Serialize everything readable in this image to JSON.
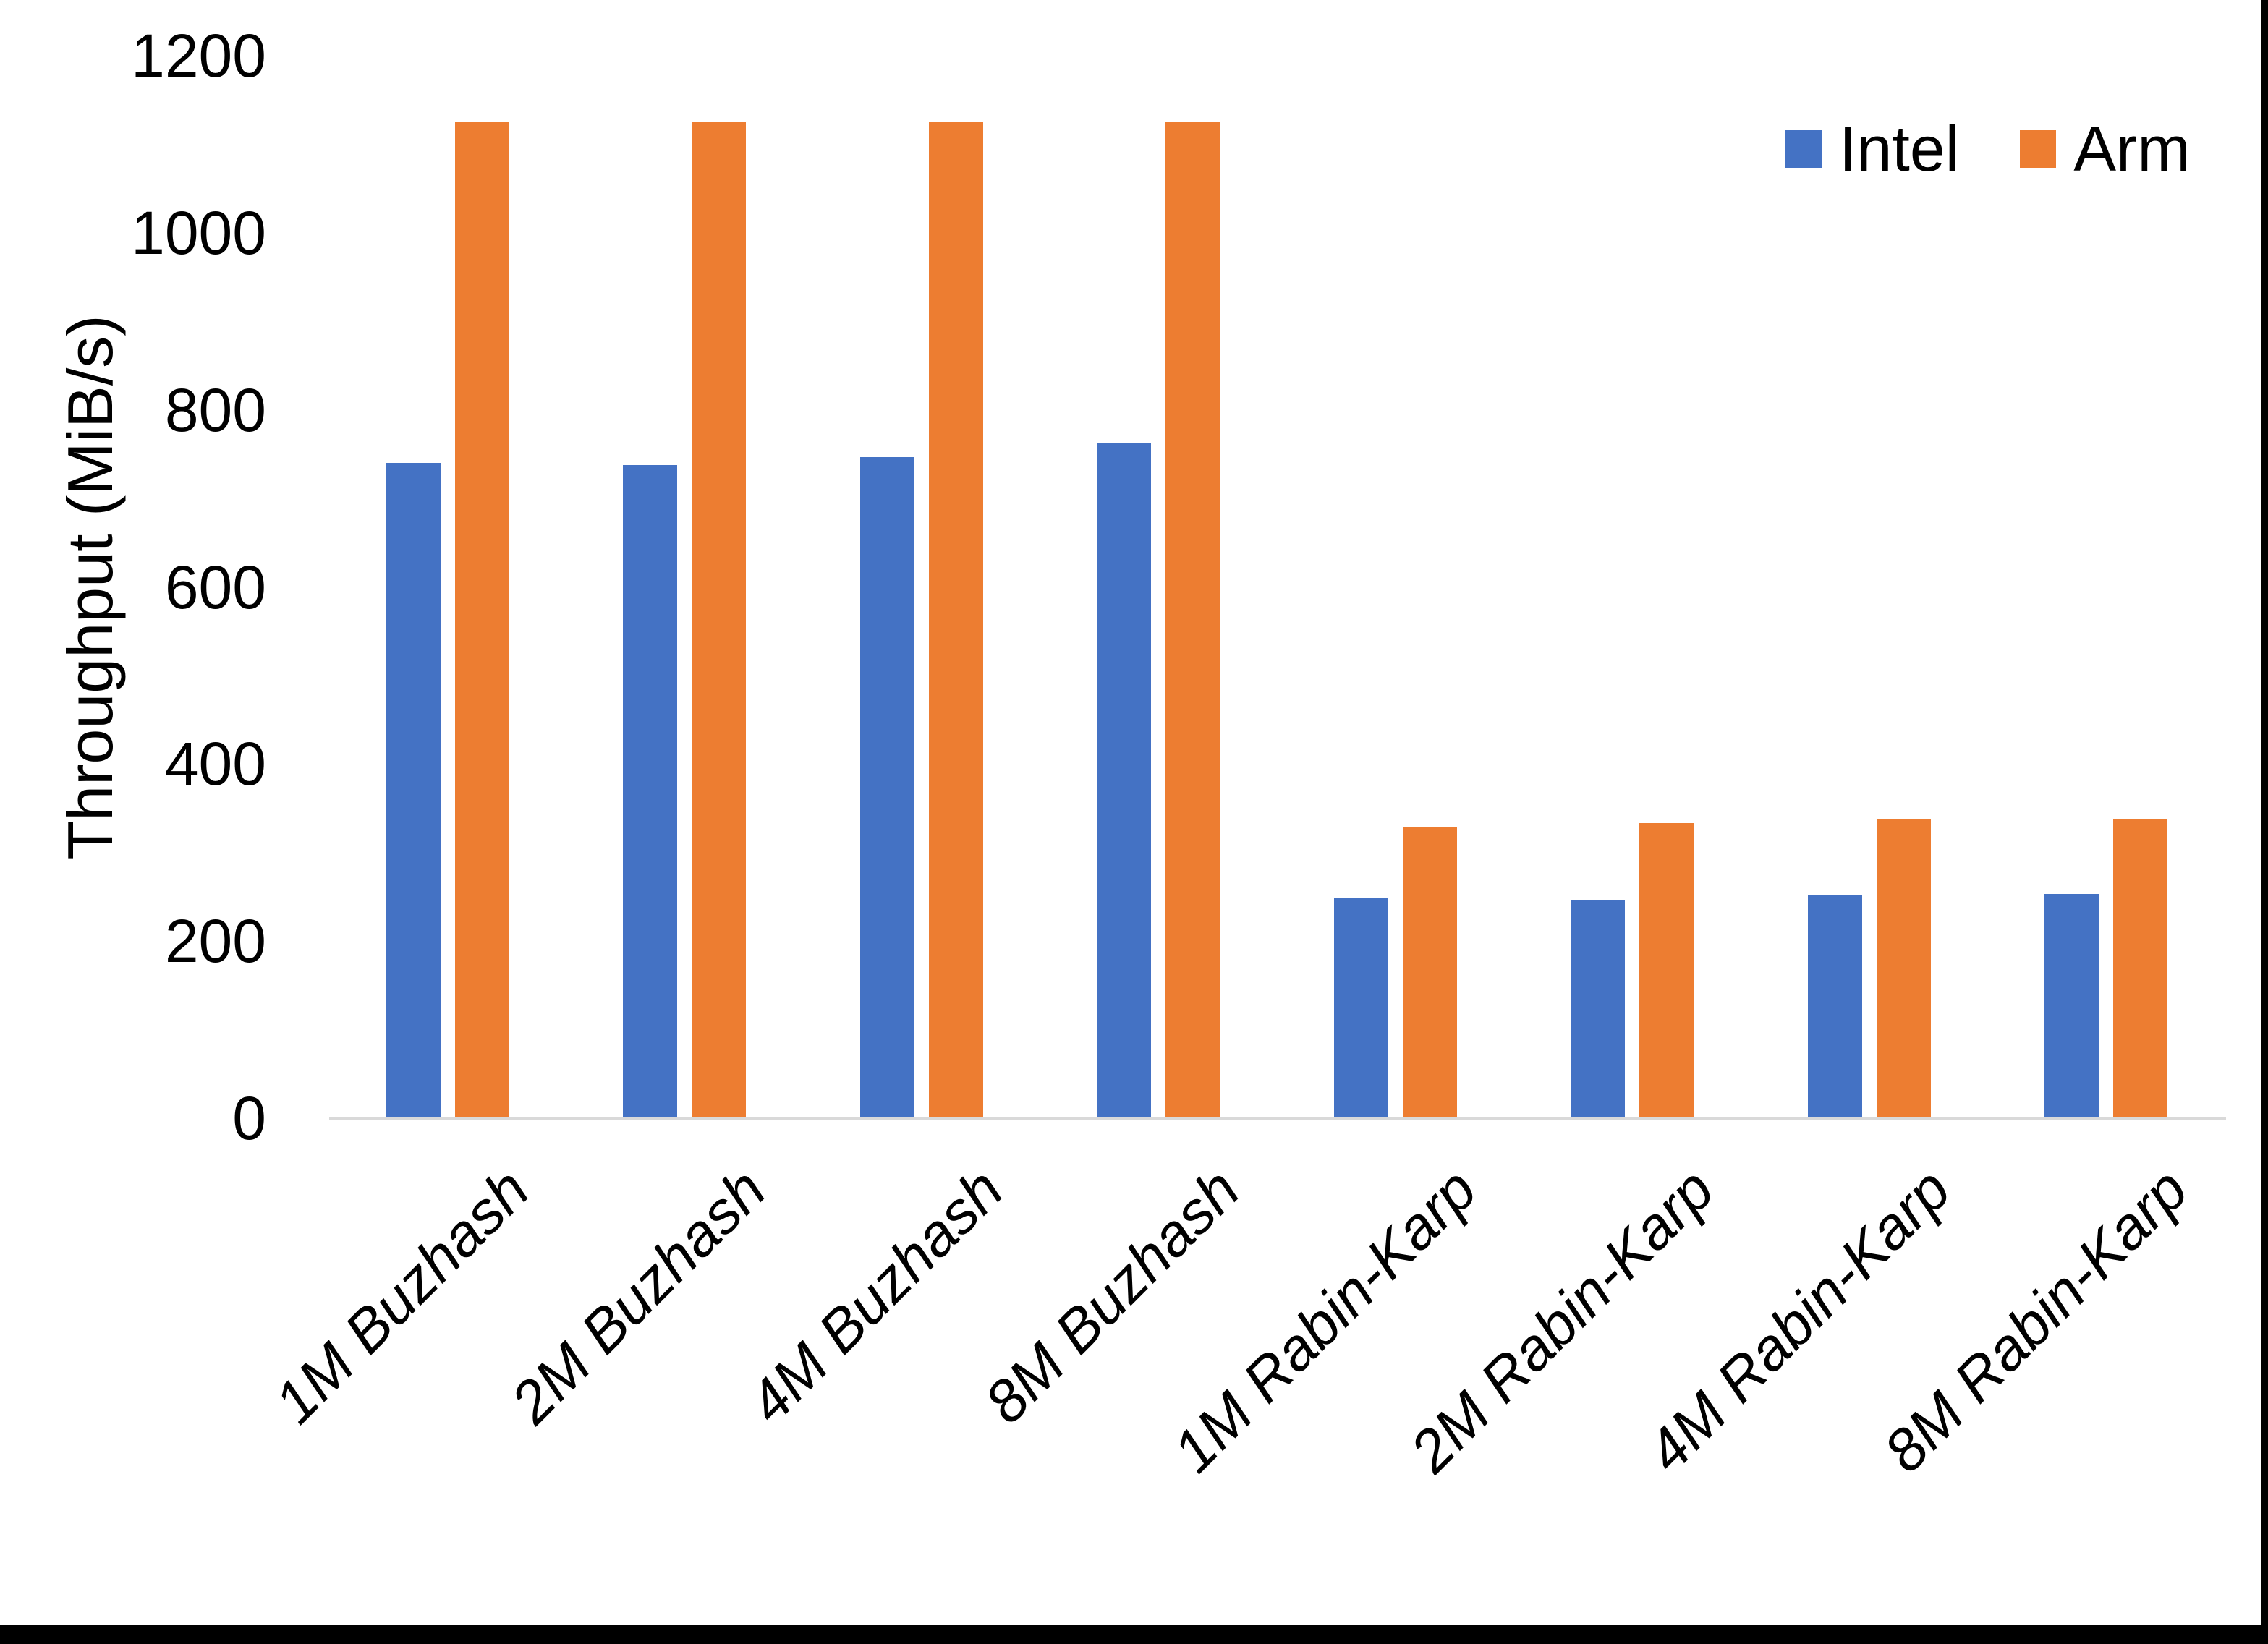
{
  "page": {
    "background_color": "#ffffff",
    "edge_border_color": "#000000"
  },
  "axis": {
    "baseline_color": "#d9d9d9",
    "tick_labels": [
      "0",
      "200",
      "400",
      "600",
      "800",
      "1000",
      "1200"
    ]
  },
  "legend": {
    "position": "top-right",
    "items": [
      {
        "label": "Intel",
        "color": "#4472C4"
      },
      {
        "label": "Arm",
        "color": "#ED7D31"
      }
    ]
  },
  "chart_data": {
    "type": "bar",
    "title": "",
    "xlabel": "",
    "ylabel": "Throughput (MiB/s)",
    "ylim": [
      0,
      1200
    ],
    "yticks": [
      0,
      200,
      400,
      600,
      800,
      1000,
      1200
    ],
    "grid": "off",
    "legend_position": "top-right",
    "categories": [
      "1M Buzhash",
      "2M Buzhash",
      "4M Buzhash",
      "8M Buzhash",
      "1M Rabin-Karp",
      "2M Rabin-Karp",
      "4M Rabin-Karp",
      "8M Rabin-Karp"
    ],
    "series": [
      {
        "name": "Intel",
        "color": "#4472C4",
        "values": [
          740,
          738,
          747,
          762,
          248,
          247,
          252,
          253
        ]
      },
      {
        "name": "Arm",
        "color": "#ED7D31",
        "values": [
          1125,
          1125,
          1125,
          1125,
          329,
          333,
          337,
          338
        ]
      }
    ]
  }
}
